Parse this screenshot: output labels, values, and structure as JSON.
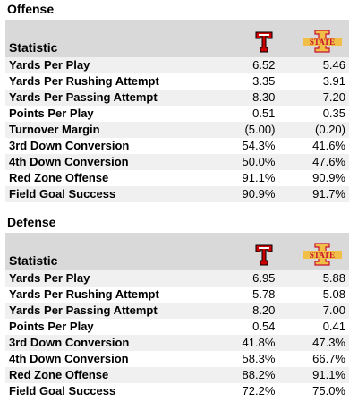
{
  "offense": {
    "title": "Offense",
    "header_label": "Statistic",
    "teams": [
      {
        "logo": "texas-tech-t-icon",
        "color": "#cc0000"
      },
      {
        "logo": "iowa-state-i-icon",
        "color": "#c8102e",
        "accent": "#f1be48",
        "wordmark": "STATE"
      }
    ],
    "rows": [
      {
        "stat": "Yards Per Play",
        "a": "6.52",
        "b": "5.46"
      },
      {
        "stat": "Yards Per Rushing Attempt",
        "a": "3.35",
        "b": "3.91"
      },
      {
        "stat": "Yards Per Passing Attempt",
        "a": "8.30",
        "b": "7.20"
      },
      {
        "stat": "Points Per Play",
        "a": "0.51",
        "b": "0.35"
      },
      {
        "stat": "Turnover Margin",
        "a": "(5.00)",
        "b": "(0.20)"
      },
      {
        "stat": "3rd Down Conversion",
        "a": "54.3%",
        "b": "41.6%"
      },
      {
        "stat": "4th Down Conversion",
        "a": "50.0%",
        "b": "47.6%"
      },
      {
        "stat": "Red Zone Offense",
        "a": "91.1%",
        "b": "90.9%"
      },
      {
        "stat": "Field Goal Success",
        "a": "90.9%",
        "b": "91.7%"
      }
    ]
  },
  "defense": {
    "title": "Defense",
    "header_label": "Statistic",
    "rows": [
      {
        "stat": "Yards Per Play",
        "a": "6.95",
        "b": "5.88"
      },
      {
        "stat": "Yards Per Rushing Attempt",
        "a": "5.78",
        "b": "5.08"
      },
      {
        "stat": "Yards Per Passing Attempt",
        "a": "8.20",
        "b": "7.00"
      },
      {
        "stat": "Points Per Play",
        "a": "0.54",
        "b": "0.41"
      },
      {
        "stat": "3rd Down Conversion",
        "a": "41.8%",
        "b": "47.3%"
      },
      {
        "stat": "4th Down Conversion",
        "a": "58.3%",
        "b": "66.7%"
      },
      {
        "stat": "Red Zone Offense",
        "a": "88.2%",
        "b": "91.1%"
      },
      {
        "stat": "Field Goal Success",
        "a": "72.2%",
        "b": "75.0%"
      }
    ]
  }
}
